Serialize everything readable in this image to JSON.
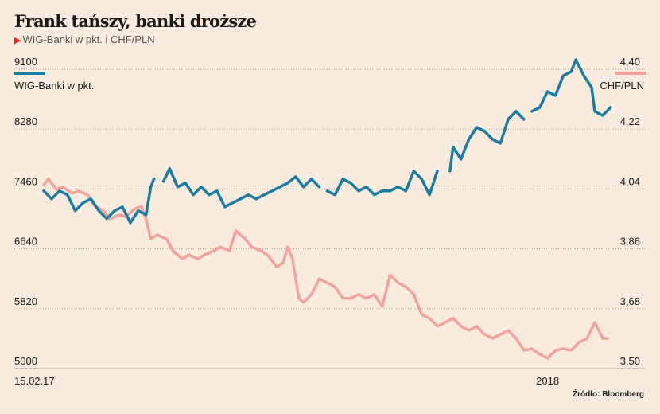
{
  "chart_data": {
    "type": "line",
    "title": "Frank tańszy, banki droższe",
    "subtitle": "WIG-Banki w pkt. i CHF/PLN",
    "source": "Źródło: Bloomberg",
    "x_unit": "days since 15.02.17",
    "x_ticks": [
      {
        "day": 0,
        "label": "15.02.17"
      },
      {
        "day": 320,
        "label": "2018"
      }
    ],
    "left_axis": {
      "ticks": [
        "9100",
        "8280",
        "7460",
        "6640",
        "5820",
        "5000"
      ],
      "ylim": [
        5000,
        9100
      ]
    },
    "right_axis": {
      "ticks": [
        "4,40",
        "4,22",
        "4,04",
        "3,86",
        "3,68",
        "3,50"
      ],
      "ylim": [
        3.5,
        4.4
      ]
    },
    "grid": true,
    "series": [
      {
        "name": "WIG-Banki w pkt.",
        "axis": "left",
        "color": "#1b7ba3",
        "points": [
          [
            0,
            7434
          ],
          [
            5,
            7325
          ],
          [
            10,
            7434
          ],
          [
            15,
            7380
          ],
          [
            20,
            7162
          ],
          [
            25,
            7270
          ],
          [
            30,
            7325
          ],
          [
            35,
            7162
          ],
          [
            40,
            7053
          ],
          [
            45,
            7162
          ],
          [
            50,
            7216
          ],
          [
            55,
            6998
          ],
          [
            60,
            7162
          ],
          [
            65,
            7107
          ],
          [
            68,
            7488
          ],
          [
            70,
            7597
          ],
          null,
          [
            76,
            7565
          ],
          [
            80,
            7739
          ],
          [
            85,
            7488
          ],
          [
            90,
            7543
          ],
          [
            95,
            7380
          ],
          [
            100,
            7488
          ],
          [
            105,
            7380
          ],
          [
            110,
            7434
          ],
          [
            115,
            7216
          ],
          [
            120,
            7270
          ],
          [
            125,
            7325
          ],
          [
            130,
            7380
          ],
          [
            135,
            7325
          ],
          [
            140,
            7380
          ],
          [
            145,
            7434
          ],
          [
            150,
            7488
          ],
          [
            155,
            7543
          ],
          [
            160,
            7630
          ],
          [
            165,
            7488
          ],
          [
            170,
            7597
          ],
          [
            175,
            7488
          ],
          null,
          [
            180,
            7434
          ],
          [
            185,
            7380
          ],
          [
            190,
            7597
          ],
          [
            195,
            7543
          ],
          [
            200,
            7434
          ],
          [
            205,
            7488
          ],
          [
            210,
            7380
          ],
          [
            215,
            7434
          ],
          [
            220,
            7434
          ],
          [
            225,
            7488
          ],
          [
            230,
            7434
          ],
          [
            235,
            7706
          ],
          [
            240,
            7597
          ],
          [
            245,
            7380
          ],
          [
            250,
            7706
          ],
          null,
          [
            258,
            7706
          ],
          [
            260,
            8033
          ],
          [
            265,
            7869
          ],
          [
            270,
            8142
          ],
          [
            275,
            8305
          ],
          [
            280,
            8251
          ],
          [
            285,
            8142
          ],
          [
            290,
            8087
          ],
          [
            295,
            8414
          ],
          [
            300,
            8523
          ],
          [
            305,
            8414
          ],
          null,
          [
            310,
            8523
          ],
          [
            315,
            8577
          ],
          [
            320,
            8795
          ],
          [
            325,
            8741
          ],
          [
            330,
            9013
          ],
          [
            335,
            9067
          ],
          [
            338,
            9231
          ],
          [
            343,
            9013
          ],
          [
            348,
            8850
          ],
          [
            350,
            8523
          ],
          [
            355,
            8468
          ],
          [
            360,
            8577
          ]
        ]
      },
      {
        "name": "CHF/PLN",
        "axis": "right",
        "color": "#f5a19d",
        "points": [
          [
            0,
            4.053
          ],
          [
            3,
            4.07
          ],
          [
            8,
            4.039
          ],
          [
            12,
            4.046
          ],
          [
            18,
            4.027
          ],
          [
            22,
            4.034
          ],
          [
            28,
            4.022
          ],
          [
            32,
            3.991
          ],
          [
            38,
            3.974
          ],
          [
            42,
            3.95
          ],
          [
            48,
            3.962
          ],
          [
            52,
            3.957
          ],
          [
            58,
            3.981
          ],
          [
            62,
            3.988
          ],
          [
            65,
            3.95
          ],
          [
            68,
            3.89
          ],
          [
            72,
            3.902
          ],
          [
            78,
            3.89
          ],
          [
            82,
            3.854
          ],
          [
            88,
            3.83
          ],
          [
            92,
            3.842
          ],
          [
            98,
            3.83
          ],
          [
            102,
            3.842
          ],
          [
            108,
            3.854
          ],
          [
            112,
            3.866
          ],
          [
            118,
            3.854
          ],
          [
            122,
            3.914
          ],
          [
            128,
            3.89
          ],
          [
            132,
            3.866
          ],
          [
            138,
            3.854
          ],
          [
            142,
            3.842
          ],
          [
            148,
            3.806
          ],
          [
            152,
            3.818
          ],
          [
            155,
            3.866
          ],
          [
            158,
            3.83
          ],
          [
            160,
            3.77
          ],
          [
            162,
            3.711
          ],
          [
            165,
            3.699
          ],
          [
            170,
            3.723
          ],
          [
            175,
            3.77
          ],
          [
            180,
            3.758
          ],
          [
            185,
            3.746
          ],
          [
            190,
            3.711
          ],
          [
            195,
            3.711
          ],
          [
            200,
            3.723
          ],
          [
            205,
            3.711
          ],
          [
            210,
            3.723
          ],
          [
            215,
            3.687
          ],
          [
            220,
            3.782
          ],
          [
            225,
            3.758
          ],
          [
            230,
            3.746
          ],
          [
            235,
            3.723
          ],
          [
            240,
            3.663
          ],
          [
            245,
            3.651
          ],
          [
            250,
            3.627
          ],
          [
            255,
            3.639
          ],
          [
            260,
            3.651
          ],
          [
            265,
            3.627
          ],
          [
            270,
            3.615
          ],
          [
            275,
            3.627
          ],
          [
            280,
            3.603
          ],
          [
            285,
            3.591
          ],
          [
            290,
            3.603
          ],
          [
            295,
            3.615
          ],
          [
            300,
            3.591
          ],
          [
            305,
            3.555
          ],
          [
            310,
            3.56
          ],
          [
            315,
            3.543
          ],
          [
            320,
            3.531
          ],
          [
            325,
            3.555
          ],
          [
            330,
            3.56
          ],
          [
            335,
            3.555
          ],
          [
            340,
            3.579
          ],
          [
            345,
            3.591
          ],
          [
            350,
            3.639
          ],
          [
            355,
            3.591
          ],
          [
            358,
            3.591
          ]
        ]
      }
    ]
  }
}
